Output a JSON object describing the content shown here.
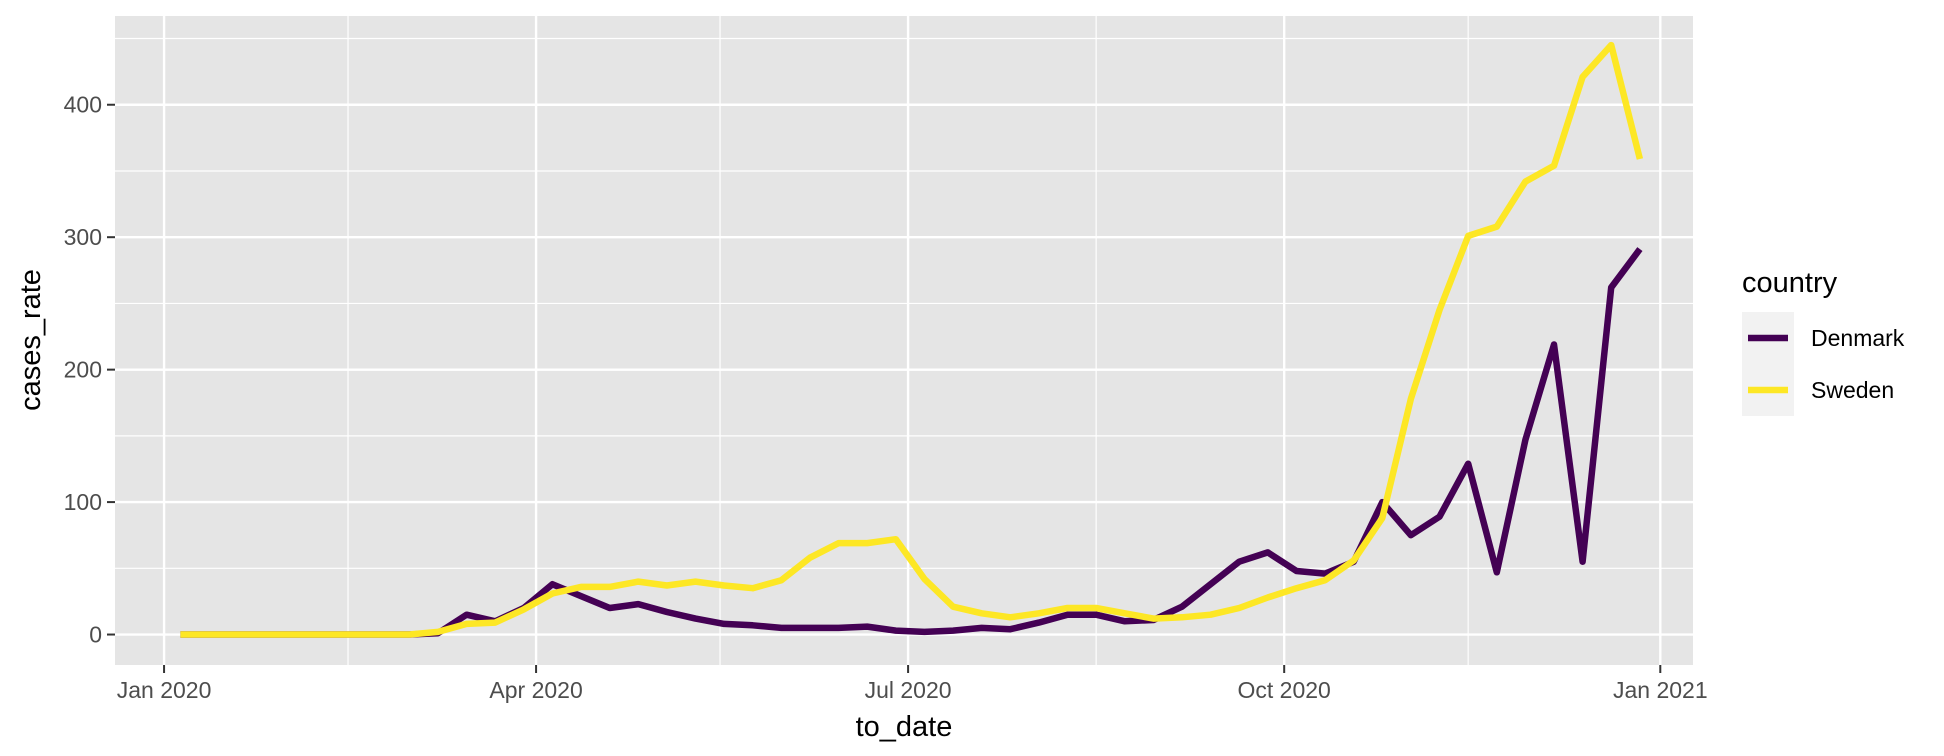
{
  "chart_data": {
    "type": "line",
    "xlabel": "to_date",
    "ylabel": "cases_rate",
    "x_axis_type": "date",
    "xlim": [
      "2019-12-20",
      "2021-01-09"
    ],
    "ylim": [
      -23,
      467
    ],
    "x_ticks": [
      {
        "date": "2020-01-01",
        "label": "Jan 2020"
      },
      {
        "date": "2020-04-01",
        "label": "Apr 2020"
      },
      {
        "date": "2020-07-01",
        "label": "Jul 2020"
      },
      {
        "date": "2020-10-01",
        "label": "Oct 2020"
      },
      {
        "date": "2021-01-01",
        "label": "Jan 2021"
      }
    ],
    "x_minor_ticks": [
      "2020-02-15",
      "2020-05-16",
      "2020-08-16",
      "2020-11-15"
    ],
    "y_ticks": [
      {
        "value": 0,
        "label": "0"
      },
      {
        "value": 100,
        "label": "100"
      },
      {
        "value": 200,
        "label": "200"
      },
      {
        "value": 300,
        "label": "300"
      },
      {
        "value": 400,
        "label": "400"
      }
    ],
    "y_minor_ticks": [
      50,
      150,
      250,
      350,
      450
    ],
    "grid": true,
    "legend": {
      "title": "country",
      "position": "right"
    },
    "background_color": "#e5e5e5",
    "grid_color": "#ffffff",
    "series": [
      {
        "name": "Denmark",
        "color": "#440154",
        "x": [
          "2020-01-05",
          "2020-01-12",
          "2020-01-19",
          "2020-01-26",
          "2020-02-02",
          "2020-02-09",
          "2020-02-16",
          "2020-02-23",
          "2020-03-01",
          "2020-03-08",
          "2020-03-15",
          "2020-03-22",
          "2020-03-29",
          "2020-04-05",
          "2020-04-12",
          "2020-04-19",
          "2020-04-26",
          "2020-05-03",
          "2020-05-10",
          "2020-05-17",
          "2020-05-24",
          "2020-05-31",
          "2020-06-07",
          "2020-06-14",
          "2020-06-21",
          "2020-06-28",
          "2020-07-05",
          "2020-07-12",
          "2020-07-19",
          "2020-07-26",
          "2020-08-02",
          "2020-08-09",
          "2020-08-16",
          "2020-08-23",
          "2020-08-30",
          "2020-09-06",
          "2020-09-13",
          "2020-09-20",
          "2020-09-27",
          "2020-10-04",
          "2020-10-11",
          "2020-10-18",
          "2020-10-25",
          "2020-11-01",
          "2020-11-08",
          "2020-11-15",
          "2020-11-22",
          "2020-11-29",
          "2020-12-06",
          "2020-12-13",
          "2020-12-20",
          "2020-12-27"
        ],
        "values": [
          0,
          0,
          0,
          0,
          0,
          0,
          0,
          0,
          0,
          1,
          15,
          10,
          20,
          38,
          29,
          20,
          23,
          17,
          12,
          8,
          7,
          5,
          5,
          5,
          6,
          3,
          2,
          3,
          5,
          4,
          9,
          15,
          15,
          10,
          11,
          21,
          38,
          55,
          62,
          48,
          46,
          55,
          100,
          75,
          89,
          129,
          47,
          147,
          219,
          55,
          262,
          291
        ]
      },
      {
        "name": "Sweden",
        "color": "#fde725",
        "x": [
          "2020-01-05",
          "2020-01-12",
          "2020-01-19",
          "2020-01-26",
          "2020-02-02",
          "2020-02-09",
          "2020-02-16",
          "2020-02-23",
          "2020-03-01",
          "2020-03-08",
          "2020-03-15",
          "2020-03-22",
          "2020-03-29",
          "2020-04-05",
          "2020-04-12",
          "2020-04-19",
          "2020-04-26",
          "2020-05-03",
          "2020-05-10",
          "2020-05-17",
          "2020-05-24",
          "2020-05-31",
          "2020-06-07",
          "2020-06-14",
          "2020-06-21",
          "2020-06-28",
          "2020-07-05",
          "2020-07-12",
          "2020-07-19",
          "2020-07-26",
          "2020-08-02",
          "2020-08-09",
          "2020-08-16",
          "2020-08-23",
          "2020-08-30",
          "2020-09-06",
          "2020-09-13",
          "2020-09-20",
          "2020-09-27",
          "2020-10-04",
          "2020-10-11",
          "2020-10-18",
          "2020-10-25",
          "2020-11-01",
          "2020-11-08",
          "2020-11-15",
          "2020-11-22",
          "2020-11-29",
          "2020-12-06",
          "2020-12-13",
          "2020-12-20",
          "2020-12-27"
        ],
        "values": [
          0,
          0,
          0,
          0,
          0,
          0,
          0,
          0,
          0,
          2,
          8,
          9,
          19,
          31,
          36,
          36,
          40,
          37,
          40,
          37,
          35,
          41,
          58,
          69,
          69,
          72,
          42,
          21,
          16,
          13,
          16,
          20,
          20,
          16,
          12,
          13,
          15,
          20,
          28,
          35,
          41,
          56,
          88,
          178,
          245,
          301,
          308,
          342,
          354,
          421,
          445,
          359
        ]
      }
    ]
  }
}
